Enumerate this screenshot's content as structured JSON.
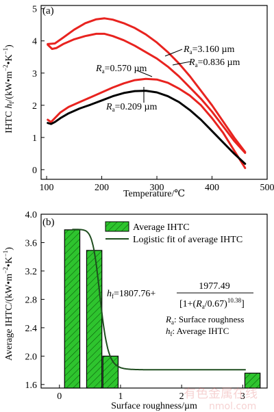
{
  "watermark": {
    "line1": "有色金属在线",
    "line2": "nmol.com"
  },
  "chart_data": [
    {
      "panel_label": "(a)",
      "type": "line",
      "xlabel": "Temperature/℃",
      "ylabel": "IHTC hₐ/(kW·m⁻²·K⁻¹)",
      "ylabel_parts": {
        "pre": "IHTC ",
        "var": "h",
        "sub": "f",
        "post1": "/(kW•m",
        "sup1": "−2",
        "mid": "•K",
        "sup2": "−1",
        "post2": ")"
      },
      "xlim": [
        90,
        500
      ],
      "ylim": [
        -0.3,
        5.1
      ],
      "xticks": [
        100,
        200,
        300,
        400,
        500
      ],
      "yticks": [
        0,
        1,
        2,
        3,
        4,
        5
      ],
      "series": [
        {
          "name": "Ra=3.160 µm",
          "label_parts": {
            "var": "R",
            "sub": "a",
            "val": "=3.160 µm"
          },
          "color": "#e8231f",
          "x": [
            102,
            115,
            130,
            150,
            170,
            190,
            205,
            220,
            240,
            260,
            280,
            300,
            320,
            340,
            360,
            380,
            400,
            420,
            440,
            460
          ],
          "y": [
            3.9,
            3.92,
            4.1,
            4.35,
            4.55,
            4.67,
            4.7,
            4.66,
            4.55,
            4.4,
            4.2,
            3.95,
            3.65,
            3.3,
            2.9,
            2.45,
            2.0,
            1.5,
            1.0,
            0.55
          ]
        },
        {
          "name": "Ra=0.836 µm",
          "label_parts": {
            "var": "R",
            "sub": "a",
            "val": "=0.836 µm"
          },
          "color": "#e8231f",
          "x": [
            102,
            110,
            118,
            130,
            150,
            170,
            190,
            205,
            220,
            240,
            260,
            280,
            300,
            320,
            340,
            360,
            380,
            400,
            420,
            440,
            460
          ],
          "y": [
            3.88,
            3.75,
            3.78,
            3.9,
            4.05,
            4.15,
            4.22,
            4.22,
            4.15,
            4.02,
            3.85,
            3.65,
            3.45,
            3.2,
            2.9,
            2.55,
            2.2,
            1.8,
            1.35,
            0.9,
            0.52
          ]
        },
        {
          "name": "Ra=0.570 µm",
          "label_parts": {
            "var": "R",
            "sub": "a",
            "val": "=0.570 µm"
          },
          "color": "#e8231f",
          "x": [
            102,
            108,
            115,
            125,
            140,
            160,
            180,
            200,
            220,
            240,
            260,
            280,
            300,
            320,
            340,
            360,
            380,
            400,
            420,
            440,
            460
          ],
          "y": [
            1.55,
            1.48,
            1.6,
            1.78,
            1.95,
            2.1,
            2.25,
            2.4,
            2.55,
            2.68,
            2.78,
            2.82,
            2.8,
            2.7,
            2.52,
            2.3,
            2.0,
            1.6,
            1.15,
            0.6,
            0.05
          ]
        },
        {
          "name": "Ra=0.209 µm",
          "label_parts": {
            "var": "R",
            "sub": "a",
            "val": "=0.209 µm"
          },
          "color": "#000000",
          "x": [
            102,
            108,
            115,
            125,
            140,
            160,
            180,
            200,
            220,
            240,
            260,
            280,
            300,
            320,
            340,
            360,
            380,
            400,
            420,
            440,
            460
          ],
          "y": [
            1.45,
            1.42,
            1.48,
            1.6,
            1.75,
            1.9,
            2.02,
            2.15,
            2.28,
            2.38,
            2.44,
            2.45,
            2.4,
            2.28,
            2.1,
            1.85,
            1.55,
            1.2,
            0.85,
            0.5,
            0.18
          ]
        }
      ]
    },
    {
      "panel_label": "(b)",
      "type": "bar",
      "xlabel": "Surface roughness/µm",
      "ylabel": "Average IHTC/(kW·m⁻²·K⁻¹)",
      "ylabel_parts": {
        "pre": "Average IHTC/(kW•m",
        "sup1": "−2",
        "mid": "•K",
        "sup2": "−1",
        "post2": ")"
      },
      "xlim": [
        -0.3,
        3.4
      ],
      "ylim": [
        1.55,
        4.0
      ],
      "xticks": [
        0,
        1,
        2,
        3
      ],
      "yticks": [
        1.6,
        2.0,
        2.4,
        2.8,
        3.2,
        3.6,
        4.0
      ],
      "bar_width": 0.25,
      "bars": {
        "x": [
          0.209,
          0.57,
          0.836,
          3.16
        ],
        "values": [
          3.78,
          3.49,
          2.0,
          1.76
        ]
      },
      "fit": {
        "name": "Logistic fit of average IHTC",
        "A": 1807.76,
        "B": 1977.49,
        "x0": 0.67,
        "p": 10.38,
        "x_start": 0.209,
        "x_end": 3.05
      },
      "legend": [
        "Average IHTC",
        "Logistic fit of average IHTC"
      ],
      "equation": {
        "lhs_var": "h",
        "lhs_sub": "f",
        "constant": "=1807.76+",
        "numerator": "1977.49",
        "denominator_pre": "[1+(",
        "denominator_var": "R",
        "denominator_sub": "a",
        "denominator_mid": "/0.67)",
        "denominator_exp": "10.38",
        "denominator_post": "]"
      },
      "notes": [
        {
          "var": "R",
          "sub": "a",
          "text": ": Surface roughness"
        },
        {
          "var": "h",
          "sub": "f",
          "text": ": Average IHTC"
        }
      ],
      "colors": {
        "bar_fill": "#2ec42e",
        "fit_line": "#1f4d1f"
      }
    }
  ]
}
